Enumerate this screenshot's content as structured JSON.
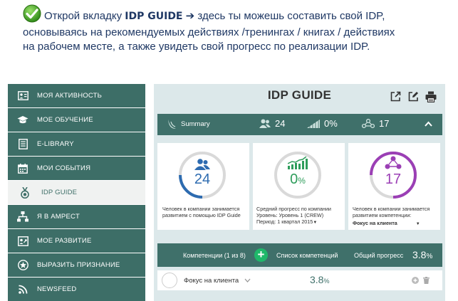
{
  "intro": {
    "line1_prefix": "Открой вкладку ",
    "line1_bold": "IDP GUIDE",
    "line1_suffix": " здесь ты можешь составить свой IDP,",
    "line2": "основываясь на рекомендуемых действиях /тренингах / книгах / действиях",
    "line3": "на рабочем месте, а также увидеть свой прогресс по реализации IDP."
  },
  "sidebar": {
    "items": [
      {
        "label": "МОЯ АКТИВНОСТЬ",
        "icon": "activity-icon"
      },
      {
        "label": "МОЕ ОБУЧЕНИЕ",
        "icon": "graduation-cap-icon"
      },
      {
        "label": "E-LIBRARY",
        "icon": "book-icon"
      },
      {
        "label": "МОИ СОБЫТИЯ",
        "icon": "calendar-icon"
      },
      {
        "label": "IDP GUIDE",
        "icon": "medal-icon"
      },
      {
        "label": "Я В AMPECT",
        "icon": "org-chart-icon"
      },
      {
        "label": "МОЕ РАЗВИТИЕ",
        "icon": "development-icon"
      },
      {
        "label": "ВЫРАЗИТЬ ПРИЗНАНИЕ",
        "icon": "star-badge-icon"
      },
      {
        "label": "NEWSFEED",
        "icon": "rss-icon"
      }
    ]
  },
  "panel": {
    "title": "IDP GUIDE",
    "summary": {
      "label": "Summary",
      "people_count": "24",
      "progress": "0%",
      "competencies_count": "17"
    },
    "cards": [
      {
        "value": "24",
        "unit": "",
        "caption_line1": "Человек в компании занимается",
        "caption_line2": "развитием с помощью IDP Guide",
        "caption_line3": ""
      },
      {
        "value": "0",
        "unit": "%",
        "caption_line1": "Средний прогресс по компании",
        "caption_line2": "Уровень: Уровень 1 (CREW)",
        "caption_line3": "Период: 1 квартал 2015"
      },
      {
        "value": "17",
        "unit": "",
        "caption_line1": "Человек в компании занимается",
        "caption_line2": "развитием компетенции:",
        "caption_line3": "Фокус на клиента"
      }
    ],
    "competencies_bar": {
      "count_label": "Компетенции (1 из 8)",
      "add": "+",
      "list_label": "Список компетенций",
      "total_label": "Общий прогресс",
      "total_value": "3.8",
      "total_unit": "%"
    },
    "competency_row": {
      "name": "Фокус на клиента",
      "value": "3.8",
      "unit": "%"
    }
  },
  "colors": {
    "sidebar": "#3d6e67",
    "accent_blue": "#2d6bb0",
    "accent_green": "#2e9d5b",
    "accent_purple": "#9b3fb5",
    "plus_green": "#1fb86a"
  }
}
